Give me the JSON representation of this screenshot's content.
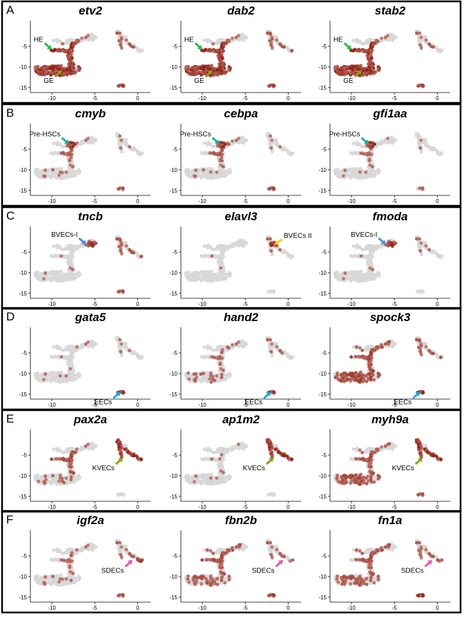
{
  "figure": {
    "panels": [
      {
        "letter": "A",
        "plots": [
          {
            "gene": "etv2",
            "labels": [
              {
                "text": "HE",
                "color": "#2db84d",
                "target": [
                  -10.0,
                  -5.8
                ]
              },
              {
                "text": "GE",
                "color": "#8aa31c",
                "target": [
                  -8.8,
                  -10.8
                ]
              }
            ],
            "clusters": {
              "ge": 0.95,
              "he": 0.9,
              "upper": 0.15,
              "right": 0.25,
              "eec": 0.5
            }
          },
          {
            "gene": "dab2",
            "labels": [
              {
                "text": "HE",
                "color": "#2db84d",
                "target": [
                  -10.0,
                  -5.8
                ]
              },
              {
                "text": "GE",
                "color": "#8aa31c",
                "target": [
                  -8.8,
                  -10.8
                ]
              }
            ],
            "clusters": {
              "ge": 0.9,
              "he": 0.95,
              "upper": 0.15,
              "right": 0.3,
              "eec": 0.5
            }
          },
          {
            "gene": "stab2",
            "labels": [
              {
                "text": "HE",
                "color": "#2db84d",
                "target": [
                  -10.0,
                  -5.8
                ]
              },
              {
                "text": "GE",
                "color": "#8aa31c",
                "target": [
                  -8.8,
                  -10.8
                ]
              }
            ],
            "clusters": {
              "ge": 0.95,
              "he": 0.9,
              "upper": 0.1,
              "right": 0.2,
              "eec": 0.4
            }
          }
        ]
      },
      {
        "letter": "B",
        "plots": [
          {
            "gene": "cmyb",
            "labels": [
              {
                "text": "Pre-HSCs",
                "color": "#1fae9a",
                "target": [
                  -8.0,
                  -3.8
                ]
              }
            ],
            "clusters": {
              "ge": 0.04,
              "he": 0.2,
              "hsc": 0.95,
              "upper": 0.05,
              "right": 0.05,
              "eec": 0.3
            }
          },
          {
            "gene": "cebpa",
            "labels": [
              {
                "text": "Pre-HSCs",
                "color": "#1fae9a",
                "target": [
                  -8.0,
                  -3.8
                ]
              }
            ],
            "clusters": {
              "ge": 0.03,
              "he": 0.25,
              "hsc": 0.9,
              "upper": 0.1,
              "right": 0.05,
              "eec": 0.4
            }
          },
          {
            "gene": "gfi1aa",
            "labels": [
              {
                "text": "Pre-HSCs",
                "color": "#1fae9a",
                "target": [
                  -8.0,
                  -3.8
                ]
              }
            ],
            "clusters": {
              "ge": 0.02,
              "he": 0.15,
              "hsc": 0.95,
              "upper": 0.02,
              "right": 0.02,
              "eec": 0.1
            }
          }
        ]
      },
      {
        "letter": "C",
        "plots": [
          {
            "gene": "tncb",
            "labels": [
              {
                "text": "BVECs-I",
                "color": "#4f8fe0",
                "target": [
                  -6.0,
                  -3.2
                ]
              }
            ],
            "clusters": {
              "ge": 0.01,
              "he": 0.03,
              "bvec1": 0.95,
              "right": 0.35,
              "eec": 0.3
            }
          },
          {
            "gene": "elavl3",
            "labels": [
              {
                "text": "BVECs II",
                "color": "#f2d12b",
                "target": [
                  -1.6,
                  -3.2
                ]
              }
            ],
            "clusters": {
              "ge": 0.0,
              "he": 0.02,
              "bvec2": 0.95,
              "right": 0.1,
              "eec": 0.0
            }
          },
          {
            "gene": "fmoda",
            "labels": [
              {
                "text": "BVECs-I",
                "color": "#4f8fe0",
                "target": [
                  -6.0,
                  -3.2
                ]
              }
            ],
            "clusters": {
              "ge": 0.01,
              "he": 0.03,
              "bvec1": 0.95,
              "right": 0.1,
              "eec": 0.0
            }
          }
        ]
      },
      {
        "letter": "D",
        "plots": [
          {
            "gene": "gata5",
            "labels": [
              {
                "text": "EECs",
                "color": "#1ba9d9",
                "target": [
                  -2.0,
                  -14.4
                ]
              }
            ],
            "clusters": {
              "ge": 0.02,
              "he": 0.02,
              "upper": 0.05,
              "right": 0.05,
              "eec": 0.95
            }
          },
          {
            "gene": "hand2",
            "labels": [
              {
                "text": "EECs",
                "color": "#1ba9d9",
                "target": [
                  -2.0,
                  -14.4
                ]
              }
            ],
            "clusters": {
              "ge": 0.1,
              "he": 0.15,
              "upper": 0.1,
              "right": 0.15,
              "eec": 0.7
            }
          },
          {
            "gene": "spock3",
            "labels": [
              {
                "text": "EECs",
                "color": "#1ba9d9",
                "target": [
                  -2.0,
                  -14.4
                ]
              }
            ],
            "clusters": {
              "ge": 0.5,
              "he": 0.55,
              "upper": 0.35,
              "right": 0.3,
              "eec": 0.95
            }
          }
        ]
      },
      {
        "letter": "E",
        "plots": [
          {
            "gene": "pax2a",
            "labels": [
              {
                "text": "KVECs",
                "color": "#8aa31c",
                "target": [
                  -1.7,
                  -5.6
                ]
              }
            ],
            "clusters": {
              "ge": 0.08,
              "he": 0.45,
              "upper": 0.05,
              "right": 0.8,
              "eec": 0.0
            }
          },
          {
            "gene": "ap1m2",
            "labels": [
              {
                "text": "KVECs",
                "color": "#8aa31c",
                "target": [
                  -1.7,
                  -5.6
                ]
              }
            ],
            "clusters": {
              "ge": 0.02,
              "he": 0.05,
              "upper": 0.02,
              "right": 0.85,
              "eec": 0.0
            }
          },
          {
            "gene": "myh9a",
            "labels": [
              {
                "text": "KVECs",
                "color": "#8aa31c",
                "target": [
                  -1.7,
                  -5.6
                ]
              }
            ],
            "clusters": {
              "ge": 0.4,
              "he": 0.4,
              "upper": 0.2,
              "right": 0.9,
              "eec": 0.3
            }
          }
        ]
      },
      {
        "letter": "F",
        "plots": [
          {
            "gene": "igf2a",
            "labels": [
              {
                "text": "SDECs",
                "color": "#ee4fb6",
                "target": [
                  -0.6,
                  -6.0
                ]
              }
            ],
            "clusters": {
              "ge": 0.05,
              "he": 0.15,
              "upper": 0.05,
              "right": 0.2,
              "tip": 0.9,
              "eec": 0.3
            }
          },
          {
            "gene": "fbn2b",
            "labels": [
              {
                "text": "SDECs",
                "color": "#ee4fb6",
                "target": [
                  -0.6,
                  -6.0
                ]
              }
            ],
            "clusters": {
              "ge": 0.25,
              "he": 0.45,
              "upper": 0.3,
              "right": 0.2,
              "tip": 0.2,
              "eec": 0.5
            }
          },
          {
            "gene": "fn1a",
            "labels": [
              {
                "text": "SDECs",
                "color": "#ee4fb6",
                "target": [
                  -0.6,
                  -6.0
                ]
              }
            ],
            "clusters": {
              "ge": 0.3,
              "he": 0.4,
              "upper": 0.35,
              "right": 0.25,
              "tip": 0.3,
              "eec": 0.9
            }
          }
        ]
      }
    ],
    "axes": {
      "x_ticks": [
        -10,
        -5,
        0
      ],
      "y_ticks": [
        -5,
        -10,
        -15
      ],
      "xlim": [
        -12.5,
        1.5
      ],
      "ylim": [
        -16.2,
        1.2
      ]
    },
    "colors": {
      "background": "#d8d8d8",
      "high": "#8b1a10",
      "low": "#e6b7ab",
      "border": "#000000"
    }
  }
}
